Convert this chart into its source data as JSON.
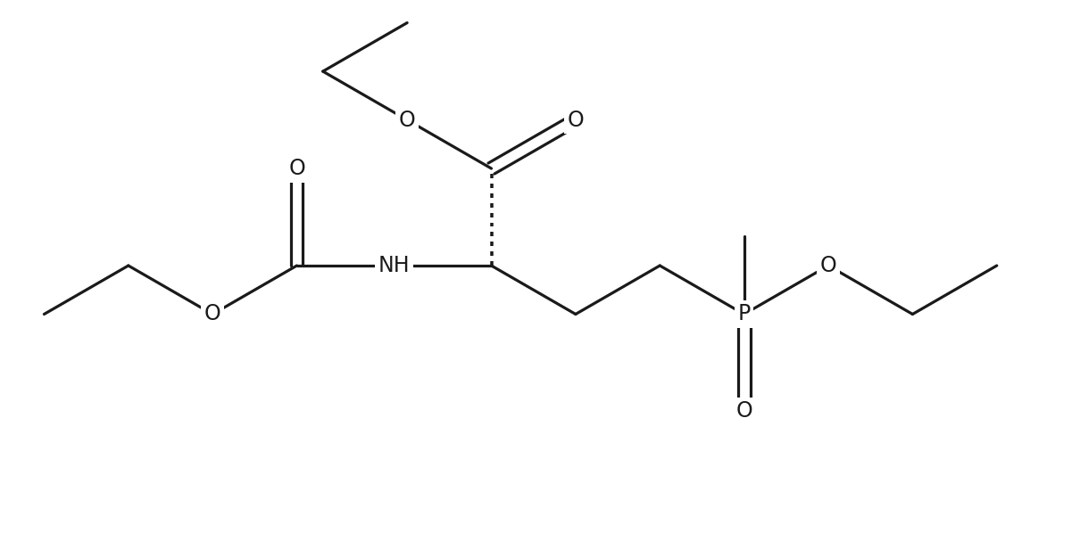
{
  "background_color": "#ffffff",
  "line_color": "#1a1a1a",
  "line_width": 2.3,
  "figsize": [
    12.1,
    5.98
  ],
  "dpi": 100,
  "font_size": 17,
  "xlim": [
    0,
    12.1
  ],
  "ylim": [
    0,
    5.98
  ],
  "labels": {
    "O_carbonyl_ester": "O",
    "O_ester_link": "O",
    "O_carbamate_carbonyl": "O",
    "O_carbamate_link": "O",
    "NH": "NH",
    "P": "P",
    "O_phosphonate": "O",
    "O_phosphonate_link": "O"
  }
}
